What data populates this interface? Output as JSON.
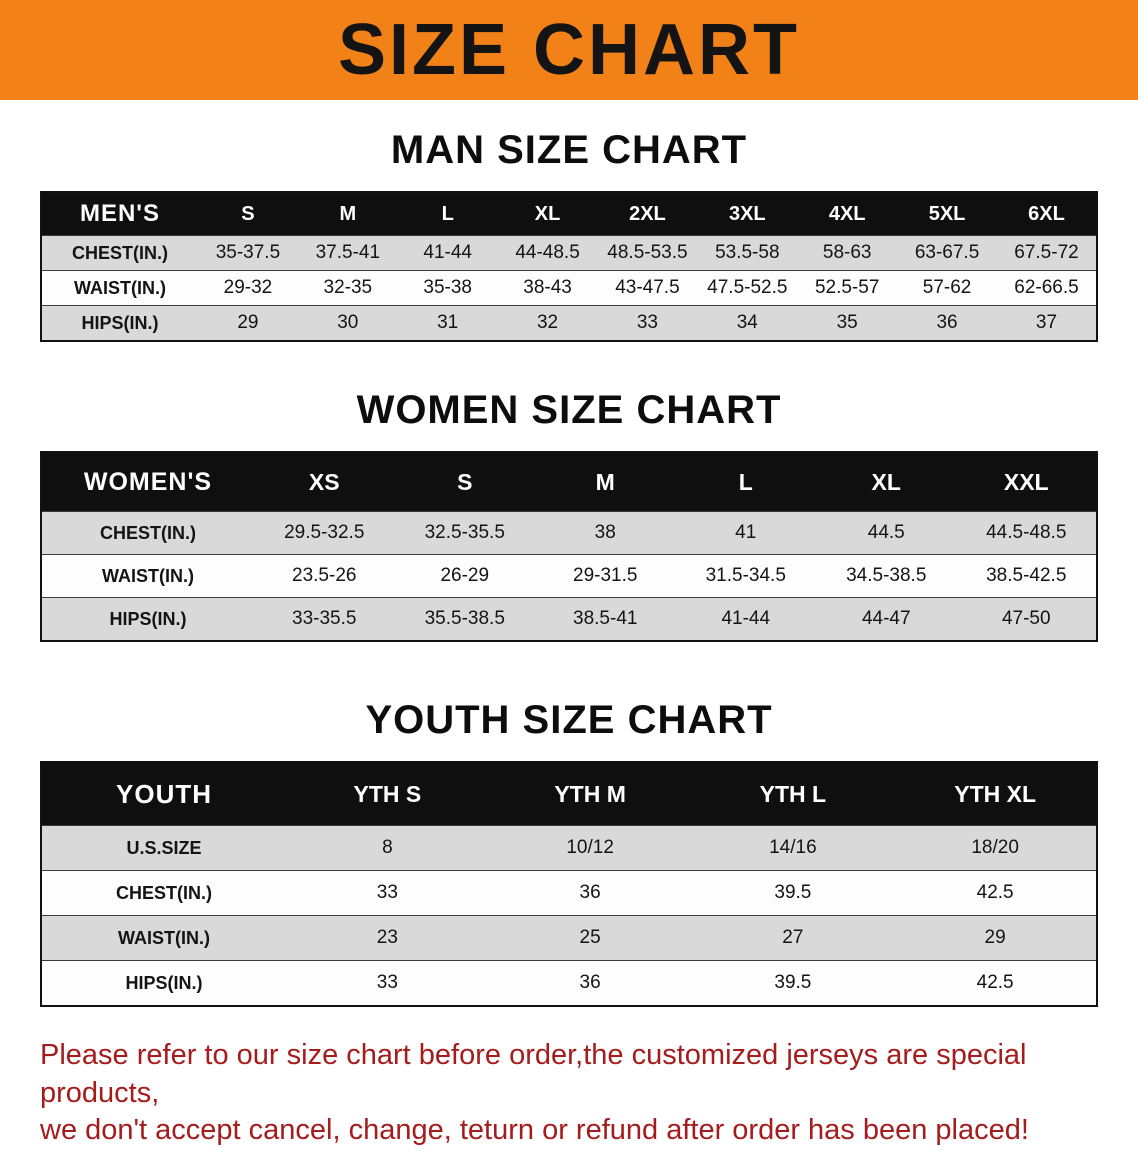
{
  "banner": {
    "title": "SIZE CHART"
  },
  "sections": [
    {
      "heading": "MAN SIZE CHART",
      "header": [
        "MEN'S",
        "S",
        "M",
        "L",
        "XL",
        "2XL",
        "3XL",
        "4XL",
        "5XL",
        "6XL"
      ],
      "rows": [
        [
          "CHEST(IN.)",
          "35-37.5",
          "37.5-41",
          "41-44",
          "44-48.5",
          "48.5-53.5",
          "53.5-58",
          "58-63",
          "63-67.5",
          "67.5-72"
        ],
        [
          "WAIST(IN.)",
          "29-32",
          "32-35",
          "35-38",
          "38-43",
          "43-47.5",
          "47.5-52.5",
          "52.5-57",
          "57-62",
          "62-66.5"
        ],
        [
          "HIPS(IN.)",
          "29",
          "30",
          "31",
          "32",
          "33",
          "34",
          "35",
          "36",
          "37"
        ]
      ]
    },
    {
      "heading": "WOMEN SIZE CHART",
      "header": [
        "WOMEN'S",
        "XS",
        "S",
        "M",
        "L",
        "XL",
        "XXL"
      ],
      "rows": [
        [
          "CHEST(IN.)",
          "29.5-32.5",
          "32.5-35.5",
          "38",
          "41",
          "44.5",
          "44.5-48.5"
        ],
        [
          "WAIST(IN.)",
          "23.5-26",
          "26-29",
          "29-31.5",
          "31.5-34.5",
          "34.5-38.5",
          "38.5-42.5"
        ],
        [
          "HIPS(IN.)",
          "33-35.5",
          "35.5-38.5",
          "38.5-41",
          "41-44",
          "44-47",
          "47-50"
        ]
      ]
    },
    {
      "heading": "YOUTH SIZE CHART",
      "header": [
        "YOUTH",
        "YTH S",
        "YTH M",
        "YTH L",
        "YTH XL"
      ],
      "rows": [
        [
          "U.S.SIZE",
          "8",
          "10/12",
          "14/16",
          "18/20"
        ],
        [
          "CHEST(IN.)",
          "33",
          "36",
          "39.5",
          "42.5"
        ],
        [
          "WAIST(IN.)",
          "23",
          "25",
          "27",
          "29"
        ],
        [
          "HIPS(IN.)",
          "33",
          "36",
          "39.5",
          "42.5"
        ]
      ]
    }
  ],
  "footer": {
    "line1": "Please refer to our size chart before order,the customized jerseys are special products,",
    "line2": "we don't accept cancel, change, teturn or refund after order has been placed!"
  },
  "colors": {
    "banner_bg": "#f28218",
    "table_header_bg": "#0f0f0f",
    "row_alt": "#d9d9d9",
    "footer_text": "#a61c1c"
  }
}
